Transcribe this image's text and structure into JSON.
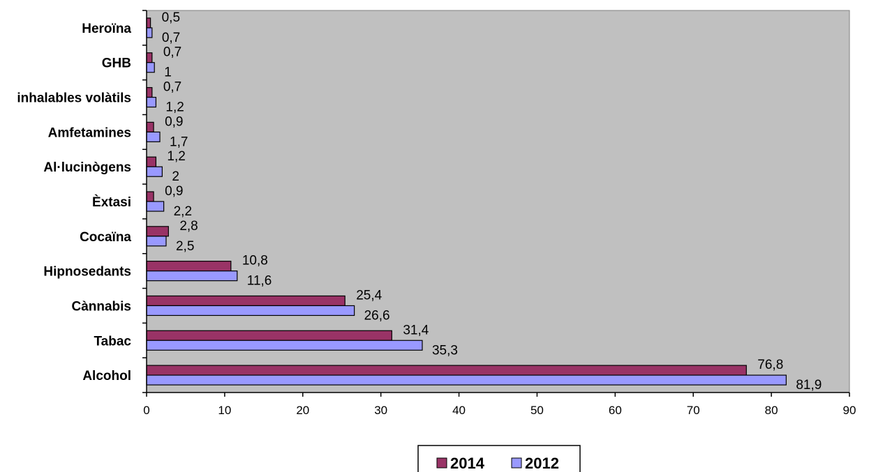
{
  "chart_data": {
    "type": "bar",
    "orientation": "horizontal",
    "categories": [
      "Alcohol",
      "Tabac",
      "Cànnabis",
      "Hipnosedants",
      "Cocaïna",
      "Èxtasi",
      "Al·lucinògens",
      "Amfetamines",
      "inhalables volàtils",
      "GHB",
      "Heroïna"
    ],
    "series": [
      {
        "name": "2014",
        "color": "#993366",
        "values": [
          76.8,
          31.4,
          25.4,
          10.8,
          2.8,
          0.9,
          1.2,
          0.9,
          0.7,
          0.7,
          0.5
        ],
        "labels": [
          "76,8",
          "31,4",
          "25,4",
          "10,8",
          "2,8",
          "0,9",
          "1,2",
          "0,9",
          "0,7",
          "0,7",
          "0,5"
        ]
      },
      {
        "name": "2012",
        "color": "#9999ff",
        "values": [
          81.9,
          35.3,
          26.6,
          11.6,
          2.5,
          2.2,
          2,
          1.7,
          1.2,
          1,
          0.7
        ],
        "labels": [
          "81,9",
          "35,3",
          "26,6",
          "11,6",
          "2,5",
          "2,2",
          "2",
          "1,7",
          "1,2",
          "1",
          "0,7"
        ]
      }
    ],
    "xlim": [
      0,
      90
    ],
    "xticks": [
      "0",
      "10",
      "20",
      "30",
      "40",
      "50",
      "60",
      "70",
      "80",
      "90"
    ],
    "grid": false,
    "plot_background": "#c0c0c0",
    "legend_position": "bottom"
  }
}
